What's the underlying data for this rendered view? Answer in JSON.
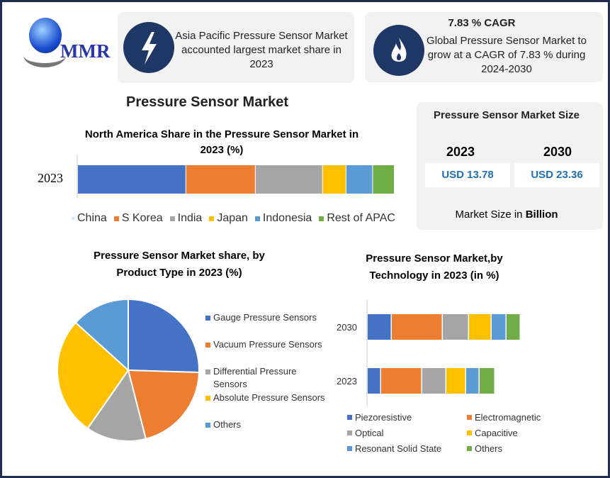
{
  "logo": {
    "text": "MMR"
  },
  "info_cards": [
    {
      "icon": "lightning-icon",
      "text": "Asia Pacific Pressure Sensor Market accounted largest market share in 2023"
    },
    {
      "icon": "flame-icon",
      "title": "7.83 % CAGR",
      "text": "Global Pressure Sensor Market to grow at a CAGR of 7.83 % during 2024-2030"
    }
  ],
  "main_title": "Pressure Sensor Market",
  "market_size": {
    "title": "Pressure Sensor Market Size",
    "years": [
      "2023",
      "2030"
    ],
    "values": [
      "USD 13.78",
      "USD 23.36"
    ],
    "footer_prefix": "Market Size in ",
    "footer_bold": "Billion"
  },
  "colors": {
    "blue": "#4472c4",
    "orange": "#ed7d31",
    "gray": "#a5a5a5",
    "yellow": "#ffc000",
    "lightblue": "#5b9bd5",
    "green": "#70ad47",
    "navy": "#1f3764",
    "accent_text": "#1f6fb5"
  },
  "chart_data": [
    {
      "type": "bar",
      "orientation": "horizontal-stacked",
      "title": "North America Share in the Pressure Sensor Market in 2023 (%)",
      "categories": [
        "2023"
      ],
      "series": [
        {
          "name": "China",
          "values": [
            28.5
          ]
        },
        {
          "name": "S Korea",
          "values": [
            18.3
          ]
        },
        {
          "name": "India",
          "values": [
            17.7
          ]
        },
        {
          "name": "Japan",
          "values": [
            6.2
          ]
        },
        {
          "name": "Indonesia",
          "values": [
            7.0
          ]
        },
        {
          "name": "Rest of APAC",
          "values": [
            5.7
          ]
        }
      ],
      "legend": "bottom",
      "grid": false
    },
    {
      "type": "pie",
      "title": "Pressure Sensor Market share, by Product Type in 2023  (%)",
      "labels": [
        "Gauge Pressure Sensors",
        "Vacuum Pressure Sensors",
        "Differential Pressure Sensors",
        "Absolute Pressure Sensors",
        "Others"
      ],
      "values": [
        25.5,
        20.5,
        13.7,
        27.0,
        13.3
      ],
      "legend": "right"
    },
    {
      "type": "bar",
      "orientation": "horizontal-stacked",
      "title": "Pressure Sensor Market,by Technology in 2023 (in %)",
      "categories": [
        "2030",
        "2023"
      ],
      "series": [
        {
          "name": "Piezoresistive",
          "values": [
            34,
            19
          ]
        },
        {
          "name": "Electromagnetic",
          "values": [
            72,
            58
          ]
        },
        {
          "name": "Optical",
          "values": [
            37,
            34
          ]
        },
        {
          "name": "Capacitive",
          "values": [
            32,
            28
          ]
        },
        {
          "name": "Resonant Solid State",
          "values": [
            21,
            19
          ]
        },
        {
          "name": "Others",
          "values": [
            20,
            22
          ]
        }
      ],
      "legend": "bottom",
      "grid": false
    }
  ]
}
